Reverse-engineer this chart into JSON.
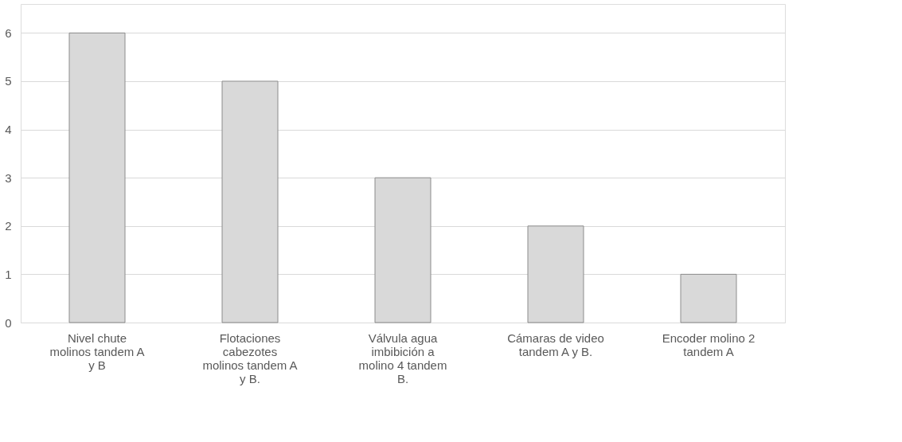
{
  "chart_data": {
    "type": "bar",
    "categories": [
      "Nivel chute molinos tandem A y B",
      "Flotaciones cabezotes molinos tandem A y B.",
      "Válvula agua imbibición a molino 4 tandem B.",
      "Cámaras de video tandem A y B.",
      "Encoder molino 2 tandem A"
    ],
    "values": [
      6,
      5,
      3,
      2,
      1
    ],
    "color": "#d9d9d9",
    "ylim": [
      0,
      6.6
    ],
    "yticks": [
      0,
      1,
      2,
      3,
      4,
      5,
      6
    ],
    "grid": "y"
  }
}
